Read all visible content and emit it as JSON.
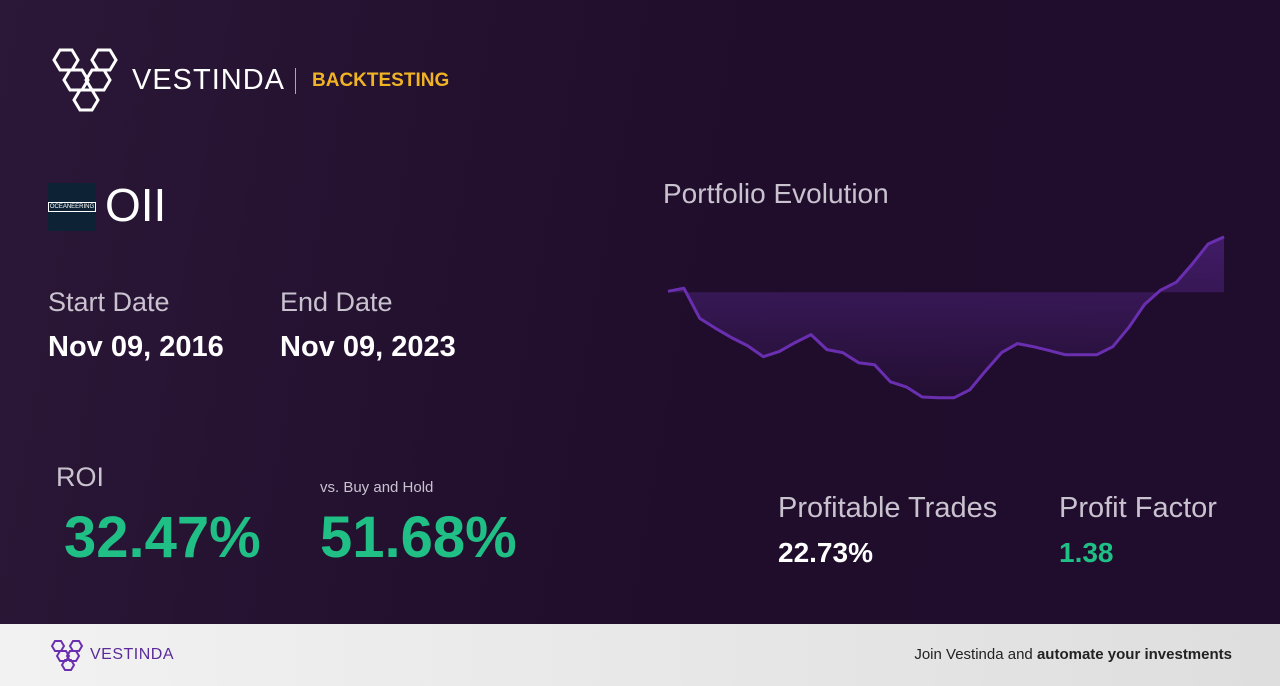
{
  "header": {
    "brand": "VESTINDA",
    "section": "BACKTESTING"
  },
  "asset": {
    "logo_text": "OCEANEERING",
    "ticker": "OII"
  },
  "dates": {
    "start_label": "Start Date",
    "start": "Nov 09, 2016",
    "end_label": "End Date",
    "end": "Nov 09, 2023"
  },
  "metrics": {
    "roi_label": "ROI",
    "roi": "32.47%",
    "vs_label": "vs. Buy and Hold",
    "vs": "51.68%",
    "trades_label": "Profitable Trades",
    "trades": "22.73%",
    "pf_label": "Profit Factor",
    "pf": "1.38"
  },
  "chart_data": {
    "type": "line",
    "title": "Portfolio Evolution",
    "color": "#6a2fb0",
    "values": [
      0.6,
      2.4,
      -15.3,
      -21.2,
      -26.6,
      -31.3,
      -37.8,
      -34.8,
      -29.5,
      -24.8,
      -33.6,
      -35.4,
      -41.3,
      -42.5,
      -52.5,
      -55.5,
      -61.4,
      -61.9,
      -61.9,
      -57.2,
      -46.0,
      -35.4,
      -30.1,
      -31.9,
      -34.2,
      -36.6,
      -36.6,
      -36.6,
      -31.9,
      -20.7,
      -7.1,
      1.2,
      5.9,
      16.5,
      28.3,
      32.5
    ],
    "ylim": [
      -62,
      33
    ]
  },
  "footer": {
    "brand": "VESTINDA",
    "cta_plain": "Join Vestinda and",
    "cta_bold": "automate your investments"
  }
}
